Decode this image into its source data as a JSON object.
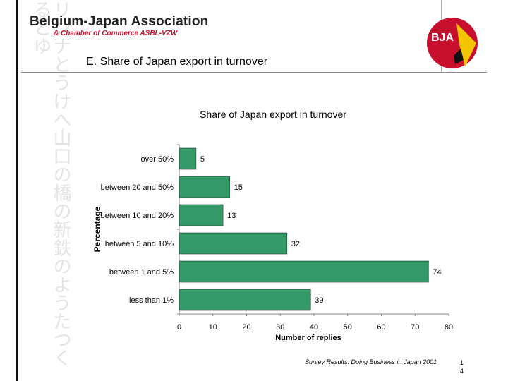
{
  "header": {
    "org_name": "Belgium-Japan Association",
    "org_sub": "& Chamber of Commerce ASBL-VZW",
    "logo_text": "BJA",
    "logo_colors": [
      "#c8102e",
      "#f4c400",
      "#111111"
    ]
  },
  "section": {
    "label": "E.",
    "title": "Share of Japan export in turnover"
  },
  "chart_data": {
    "type": "bar",
    "orientation": "horizontal",
    "title": "Share of Japan export in turnover",
    "categories": [
      "over 50%",
      "between 20 and 50%",
      "between 10 and 20%",
      "between 5 and 10%",
      "between 1 and 5%",
      "less than 1%"
    ],
    "values": [
      5,
      15,
      13,
      32,
      74,
      39
    ],
    "xlabel": "Number of replies",
    "ylabel": "Percentage",
    "xlim": [
      0,
      80
    ],
    "xticks": [
      0,
      10,
      20,
      30,
      40,
      50,
      60,
      70,
      80
    ],
    "bar_color": "#339966",
    "grid": false,
    "legend": "none"
  },
  "footer": {
    "source": "Survey Results: Doing Business in Japan 2001",
    "page": "14"
  }
}
